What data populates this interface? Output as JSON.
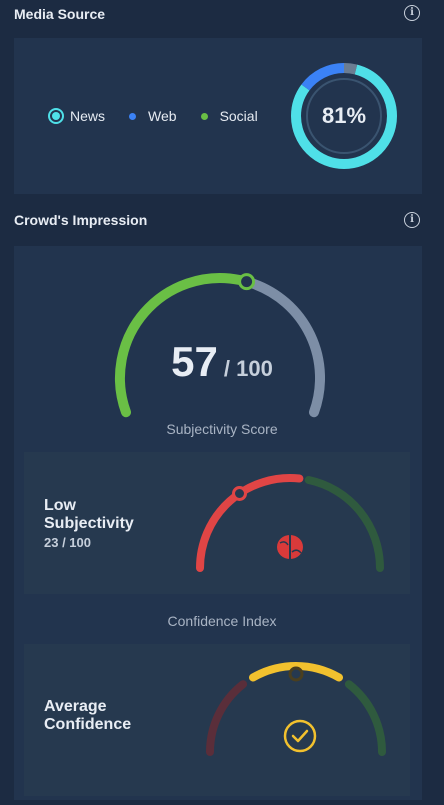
{
  "media_source": {
    "title": "Media Source",
    "legend": [
      {
        "label": "News",
        "color": "#4fe0e8",
        "selected": true
      },
      {
        "label": "Web",
        "color": "#3b82f6",
        "selected": false
      },
      {
        "label": "Social",
        "color": "#6abf45",
        "selected": false
      }
    ],
    "donut": {
      "percent_label": "81%",
      "news_fraction": 0.81,
      "web_fraction": 0.15,
      "social_fraction": 0.04
    }
  },
  "crowds_impression": {
    "title": "Crowd's Impression",
    "score": {
      "value": "57",
      "max": "/ 100",
      "fraction": 0.57,
      "good_color": "#6abf45",
      "rest_color": "#7d8ea6"
    },
    "subjectivity": {
      "title": "Subjectivity Score",
      "label_line1": "Low",
      "label_line2": "Subjectivity",
      "value": "23 / 100",
      "fraction": 0.23,
      "colors": [
        "#e04545",
        "#2f5a3e"
      ],
      "icon": "brain-icon"
    },
    "confidence": {
      "title": "Confidence Index",
      "label_line1": "Average",
      "label_line2": "Confidence",
      "colors": [
        "#5a2e3a",
        "#f2c12e",
        "#2f5a3e"
      ],
      "icon": "check-circle-icon"
    }
  }
}
